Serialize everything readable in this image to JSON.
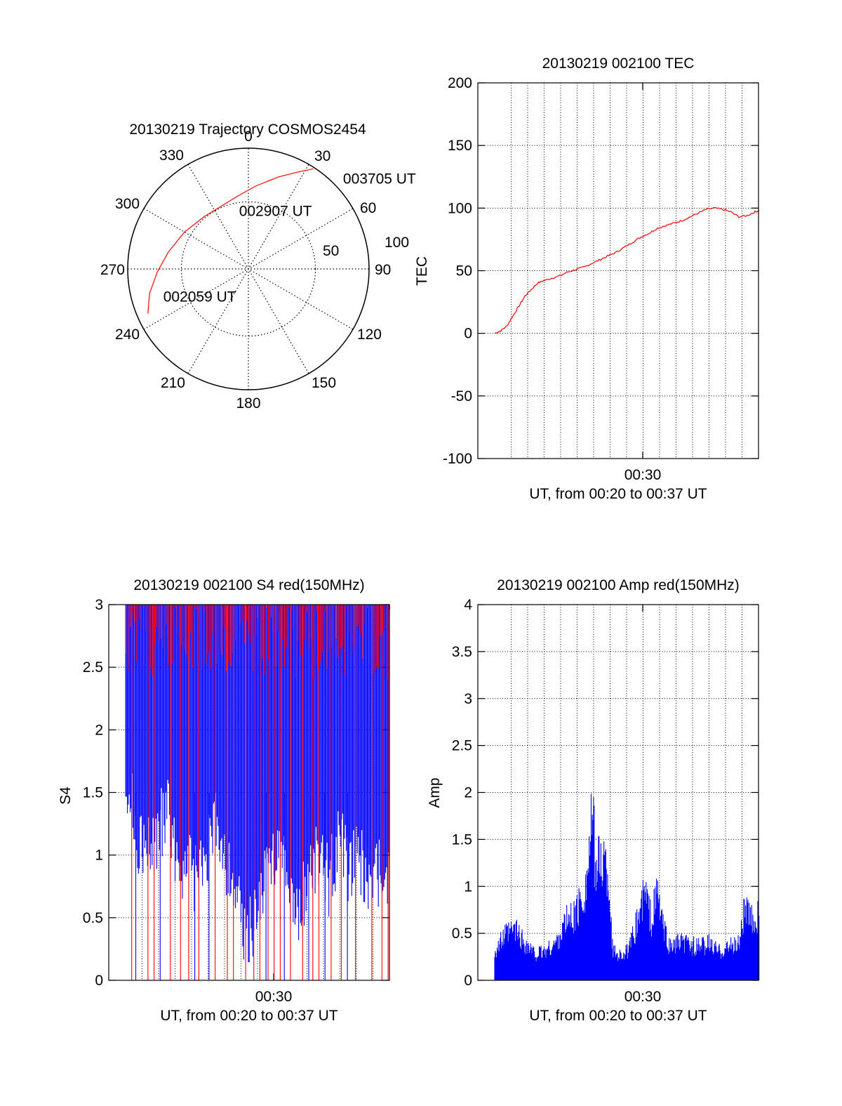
{
  "colors": {
    "series_red": "#ff0000",
    "series_blue": "#0000ff",
    "axes": "#000000",
    "grid": "#000000"
  },
  "chart_data": [
    {
      "id": "trajectory",
      "type": "polar",
      "title": "20130219 Trajectory COSMOS2454",
      "azimuth_labels": [
        "0",
        "30",
        "60",
        "90",
        "120",
        "150",
        "180",
        "210",
        "240",
        "270",
        "300",
        "330"
      ],
      "radius_labels": [
        "50",
        "100"
      ],
      "grid": true,
      "track_color": "#ff0000",
      "track": [
        {
          "az": 246,
          "el": 8
        },
        {
          "az": 256,
          "el": 14
        },
        {
          "az": 268,
          "el": 22
        },
        {
          "az": 282,
          "el": 29
        },
        {
          "az": 300,
          "el": 35
        },
        {
          "az": 320,
          "el": 39
        },
        {
          "az": 337,
          "el": 39
        },
        {
          "az": 352,
          "el": 35
        },
        {
          "az": 5,
          "el": 28
        },
        {
          "az": 18,
          "el": 18
        },
        {
          "az": 27,
          "el": 9
        },
        {
          "az": 33,
          "el": 1
        }
      ],
      "annotations": [
        {
          "text": "003705 UT",
          "az": 48,
          "el": -5
        },
        {
          "text": "002907 UT",
          "az": 350,
          "el": 50
        },
        {
          "text": "002059 UT",
          "az": 249,
          "el": 22
        }
      ]
    },
    {
      "id": "tec",
      "type": "line",
      "title": "20130219 002100 TEC",
      "ylabel": "TEC",
      "xlabel": "UT, from 00:20 to 00:37 UT",
      "xtick_label": "00:30",
      "ylim": [
        -100,
        200
      ],
      "yticks": [
        "200",
        "150",
        "100",
        "50",
        "0",
        "-50",
        "-100"
      ],
      "grid": true,
      "series": [
        {
          "color": "#ff0000",
          "points": [
            [
              0.0,
              0
            ],
            [
              0.3,
              2
            ],
            [
              0.6,
              6
            ],
            [
              0.9,
              14
            ],
            [
              1.2,
              22
            ],
            [
              1.5,
              30
            ],
            [
              1.8,
              35
            ],
            [
              2.1,
              40
            ],
            [
              2.4,
              42
            ],
            [
              2.8,
              44
            ],
            [
              3.2,
              46
            ],
            [
              3.6,
              49
            ],
            [
              4.0,
              51
            ],
            [
              4.4,
              53
            ],
            [
              4.8,
              56
            ],
            [
              5.2,
              59
            ],
            [
              5.6,
              62
            ],
            [
              6.0,
              65
            ],
            [
              6.4,
              69
            ],
            [
              6.8,
              73
            ],
            [
              7.2,
              77
            ],
            [
              7.6,
              80
            ],
            [
              8.0,
              84
            ],
            [
              8.4,
              86
            ],
            [
              8.8,
              88
            ],
            [
              9.2,
              90
            ],
            [
              9.6,
              93
            ],
            [
              10.0,
              96
            ],
            [
              10.4,
              99
            ],
            [
              10.8,
              100
            ],
            [
              11.2,
              99
            ],
            [
              11.6,
              97
            ],
            [
              12.0,
              93
            ],
            [
              12.4,
              94
            ],
            [
              12.8,
              97
            ],
            [
              13.0,
              98
            ]
          ]
        }
      ]
    },
    {
      "id": "s4",
      "type": "line",
      "title": "20130219 002100 S4 red(150MHz)",
      "ylabel": "S4",
      "xlabel": "UT, from 00:20 to 00:37 UT",
      "xtick_label": "00:30",
      "ylim": [
        0,
        3
      ],
      "yticks": [
        "3",
        "2.5",
        "2",
        "1.5",
        "1",
        "0.5",
        "0"
      ],
      "grid": true,
      "series": [
        {
          "color": "#0000ff",
          "envelope": [
            [
              0,
              2.0
            ],
            [
              0.5,
              1.5
            ],
            [
              1,
              1.3
            ],
            [
              1.5,
              1.4
            ],
            [
              2,
              1.7
            ],
            [
              2.5,
              1.3
            ],
            [
              3,
              1.2
            ],
            [
              3.5,
              1.1
            ],
            [
              4,
              1.3
            ],
            [
              4.5,
              1.6
            ],
            [
              5,
              1.2
            ],
            [
              5.5,
              1.0
            ],
            [
              5.8,
              0.6
            ],
            [
              6.2,
              0.7
            ],
            [
              6.5,
              0.9
            ],
            [
              7,
              1.2
            ],
            [
              7.5,
              1.4
            ],
            [
              8,
              1.0
            ],
            [
              8.5,
              0.8
            ],
            [
              9,
              1.2
            ],
            [
              9.5,
              1.3
            ],
            [
              10,
              1.1
            ],
            [
              10.5,
              1.4
            ],
            [
              11,
              1.2
            ],
            [
              11.5,
              1.3
            ],
            [
              12,
              1.0
            ],
            [
              12.5,
              1.2
            ],
            [
              13,
              1.1
            ]
          ],
          "upper": 3.0,
          "dropouts": [
            0.5,
            1.7,
            3.4,
            4.1,
            6.9,
            7.8,
            9.0,
            9.8,
            10.9
          ]
        },
        {
          "color": "#ff0000",
          "upper": 3.0,
          "dropouts": [
            0.3,
            1.1,
            1.4,
            2.2,
            2.7,
            3.1,
            3.6,
            4.4,
            5.0,
            5.3,
            5.9,
            6.3,
            6.6,
            7.0,
            7.3,
            7.6,
            8.1,
            8.7,
            9.2,
            9.5,
            10.1,
            10.6,
            11.3,
            12.1,
            12.6,
            12.9
          ]
        }
      ]
    },
    {
      "id": "amp",
      "type": "bar",
      "title": "20130219 002100 Amp red(150MHz)",
      "ylabel": "Amp",
      "xlabel": "UT, from 00:20 to 00:37 UT",
      "xtick_label": "00:30",
      "ylim": [
        0,
        4
      ],
      "yticks": [
        "4",
        "3.5",
        "3",
        "2.5",
        "2",
        "1.5",
        "1",
        "0.5",
        "0"
      ],
      "grid": true,
      "series": [
        {
          "color": "#0000ff",
          "envelope": [
            [
              0,
              0.4
            ],
            [
              0.5,
              0.6
            ],
            [
              1,
              0.7
            ],
            [
              1.5,
              0.5
            ],
            [
              2,
              0.35
            ],
            [
              2.5,
              0.4
            ],
            [
              3,
              0.5
            ],
            [
              3.5,
              0.8
            ],
            [
              4,
              0.9
            ],
            [
              4.5,
              1.3
            ],
            [
              4.8,
              2.2
            ],
            [
              5,
              1.5
            ],
            [
              5.3,
              1.7
            ],
            [
              5.6,
              1.4
            ],
            [
              5.8,
              0.4
            ],
            [
              6.2,
              0.35
            ],
            [
              6.6,
              0.4
            ],
            [
              7,
              0.8
            ],
            [
              7.4,
              1.2
            ],
            [
              7.7,
              0.8
            ],
            [
              8,
              1.2
            ],
            [
              8.3,
              0.7
            ],
            [
              8.6,
              0.45
            ],
            [
              9,
              0.5
            ],
            [
              9.5,
              0.5
            ],
            [
              10,
              0.45
            ],
            [
              10.5,
              0.5
            ],
            [
              11,
              0.4
            ],
            [
              11.5,
              0.45
            ],
            [
              12,
              0.5
            ],
            [
              12.3,
              1.0
            ],
            [
              12.6,
              0.8
            ],
            [
              13,
              0.9
            ]
          ]
        }
      ]
    }
  ]
}
